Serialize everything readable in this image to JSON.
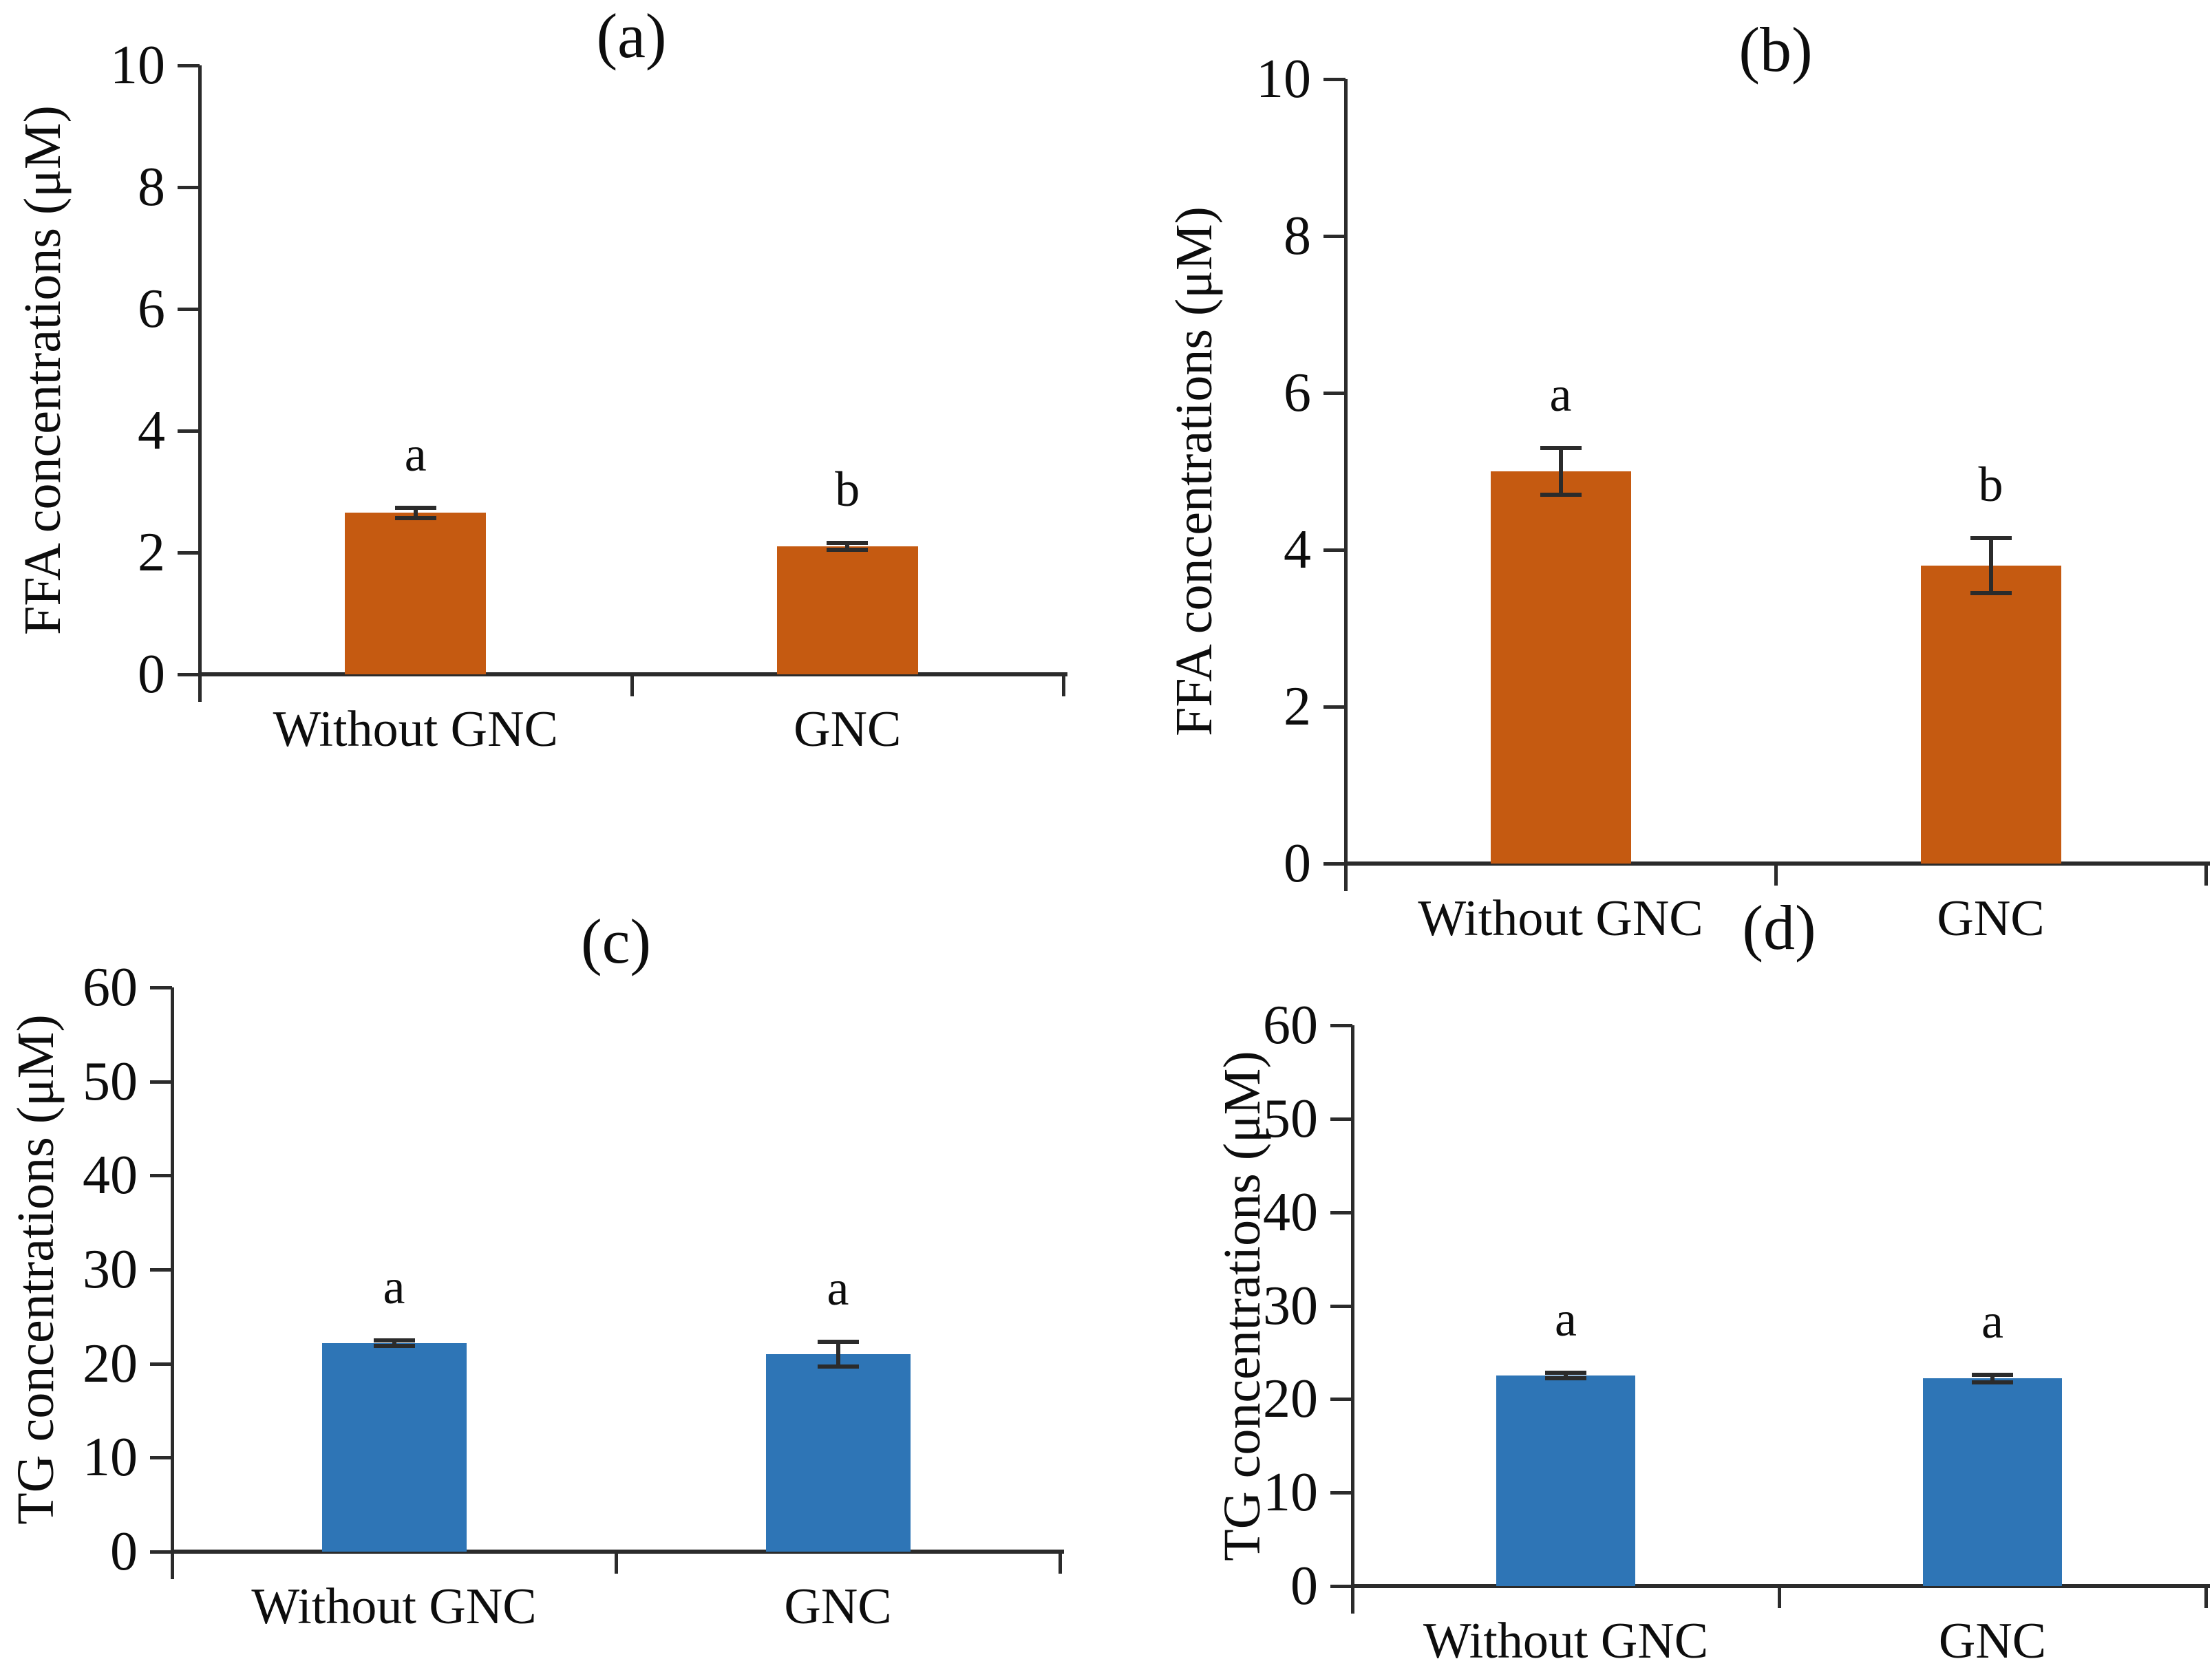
{
  "figure": {
    "background": "#FFFFFF",
    "axis_color": "#2B2B2B",
    "text_color": "#0D0D0D"
  },
  "chart_data": [
    {
      "type": "bar",
      "panel_label": "(a)",
      "ylabel": "FFA concentrations (μM)",
      "xlabel": "",
      "categories": [
        "Without GNC",
        "GNC"
      ],
      "values": [
        2.65,
        2.1
      ],
      "errors": [
        0.08,
        0.06
      ],
      "sig_letters": [
        "a",
        "b"
      ],
      "ylim": [
        0,
        10
      ],
      "yticks": [
        0,
        2,
        4,
        6,
        8,
        10
      ],
      "bar_color": "#C55A11",
      "grid": false,
      "legend": "none"
    },
    {
      "type": "bar",
      "panel_label": "(b)",
      "ylabel": "FFA concentrations (μM)",
      "xlabel": "",
      "categories": [
        "Without GNC",
        "GNC"
      ],
      "values": [
        5.0,
        3.8
      ],
      "errors": [
        0.3,
        0.35
      ],
      "sig_letters": [
        "a",
        "b"
      ],
      "ylim": [
        0,
        10
      ],
      "yticks": [
        0,
        2,
        4,
        6,
        8,
        10
      ],
      "bar_color": "#C55A11",
      "grid": false,
      "legend": "none"
    },
    {
      "type": "bar",
      "panel_label": "(c)",
      "ylabel": "TG concentrations (μM)",
      "xlabel": "",
      "categories": [
        "Without GNC",
        "GNC"
      ],
      "values": [
        22.2,
        21.0
      ],
      "errors": [
        0.3,
        1.3
      ],
      "sig_letters": [
        "a",
        "a"
      ],
      "ylim": [
        0,
        60
      ],
      "yticks": [
        0,
        10,
        20,
        30,
        40,
        50,
        60
      ],
      "bar_color": "#2E75B6",
      "grid": false,
      "legend": "none"
    },
    {
      "type": "bar",
      "panel_label": "(d)",
      "ylabel": "TG concentrations (μM)",
      "xlabel": "",
      "categories": [
        "Without GNC",
        "GNC"
      ],
      "values": [
        22.5,
        22.2
      ],
      "errors": [
        0.3,
        0.4
      ],
      "sig_letters": [
        "a",
        "a"
      ],
      "ylim": [
        0,
        60
      ],
      "yticks": [
        0,
        10,
        20,
        30,
        40,
        50,
        60
      ],
      "bar_color": "#2E75B6",
      "grid": false,
      "legend": "none"
    }
  ]
}
